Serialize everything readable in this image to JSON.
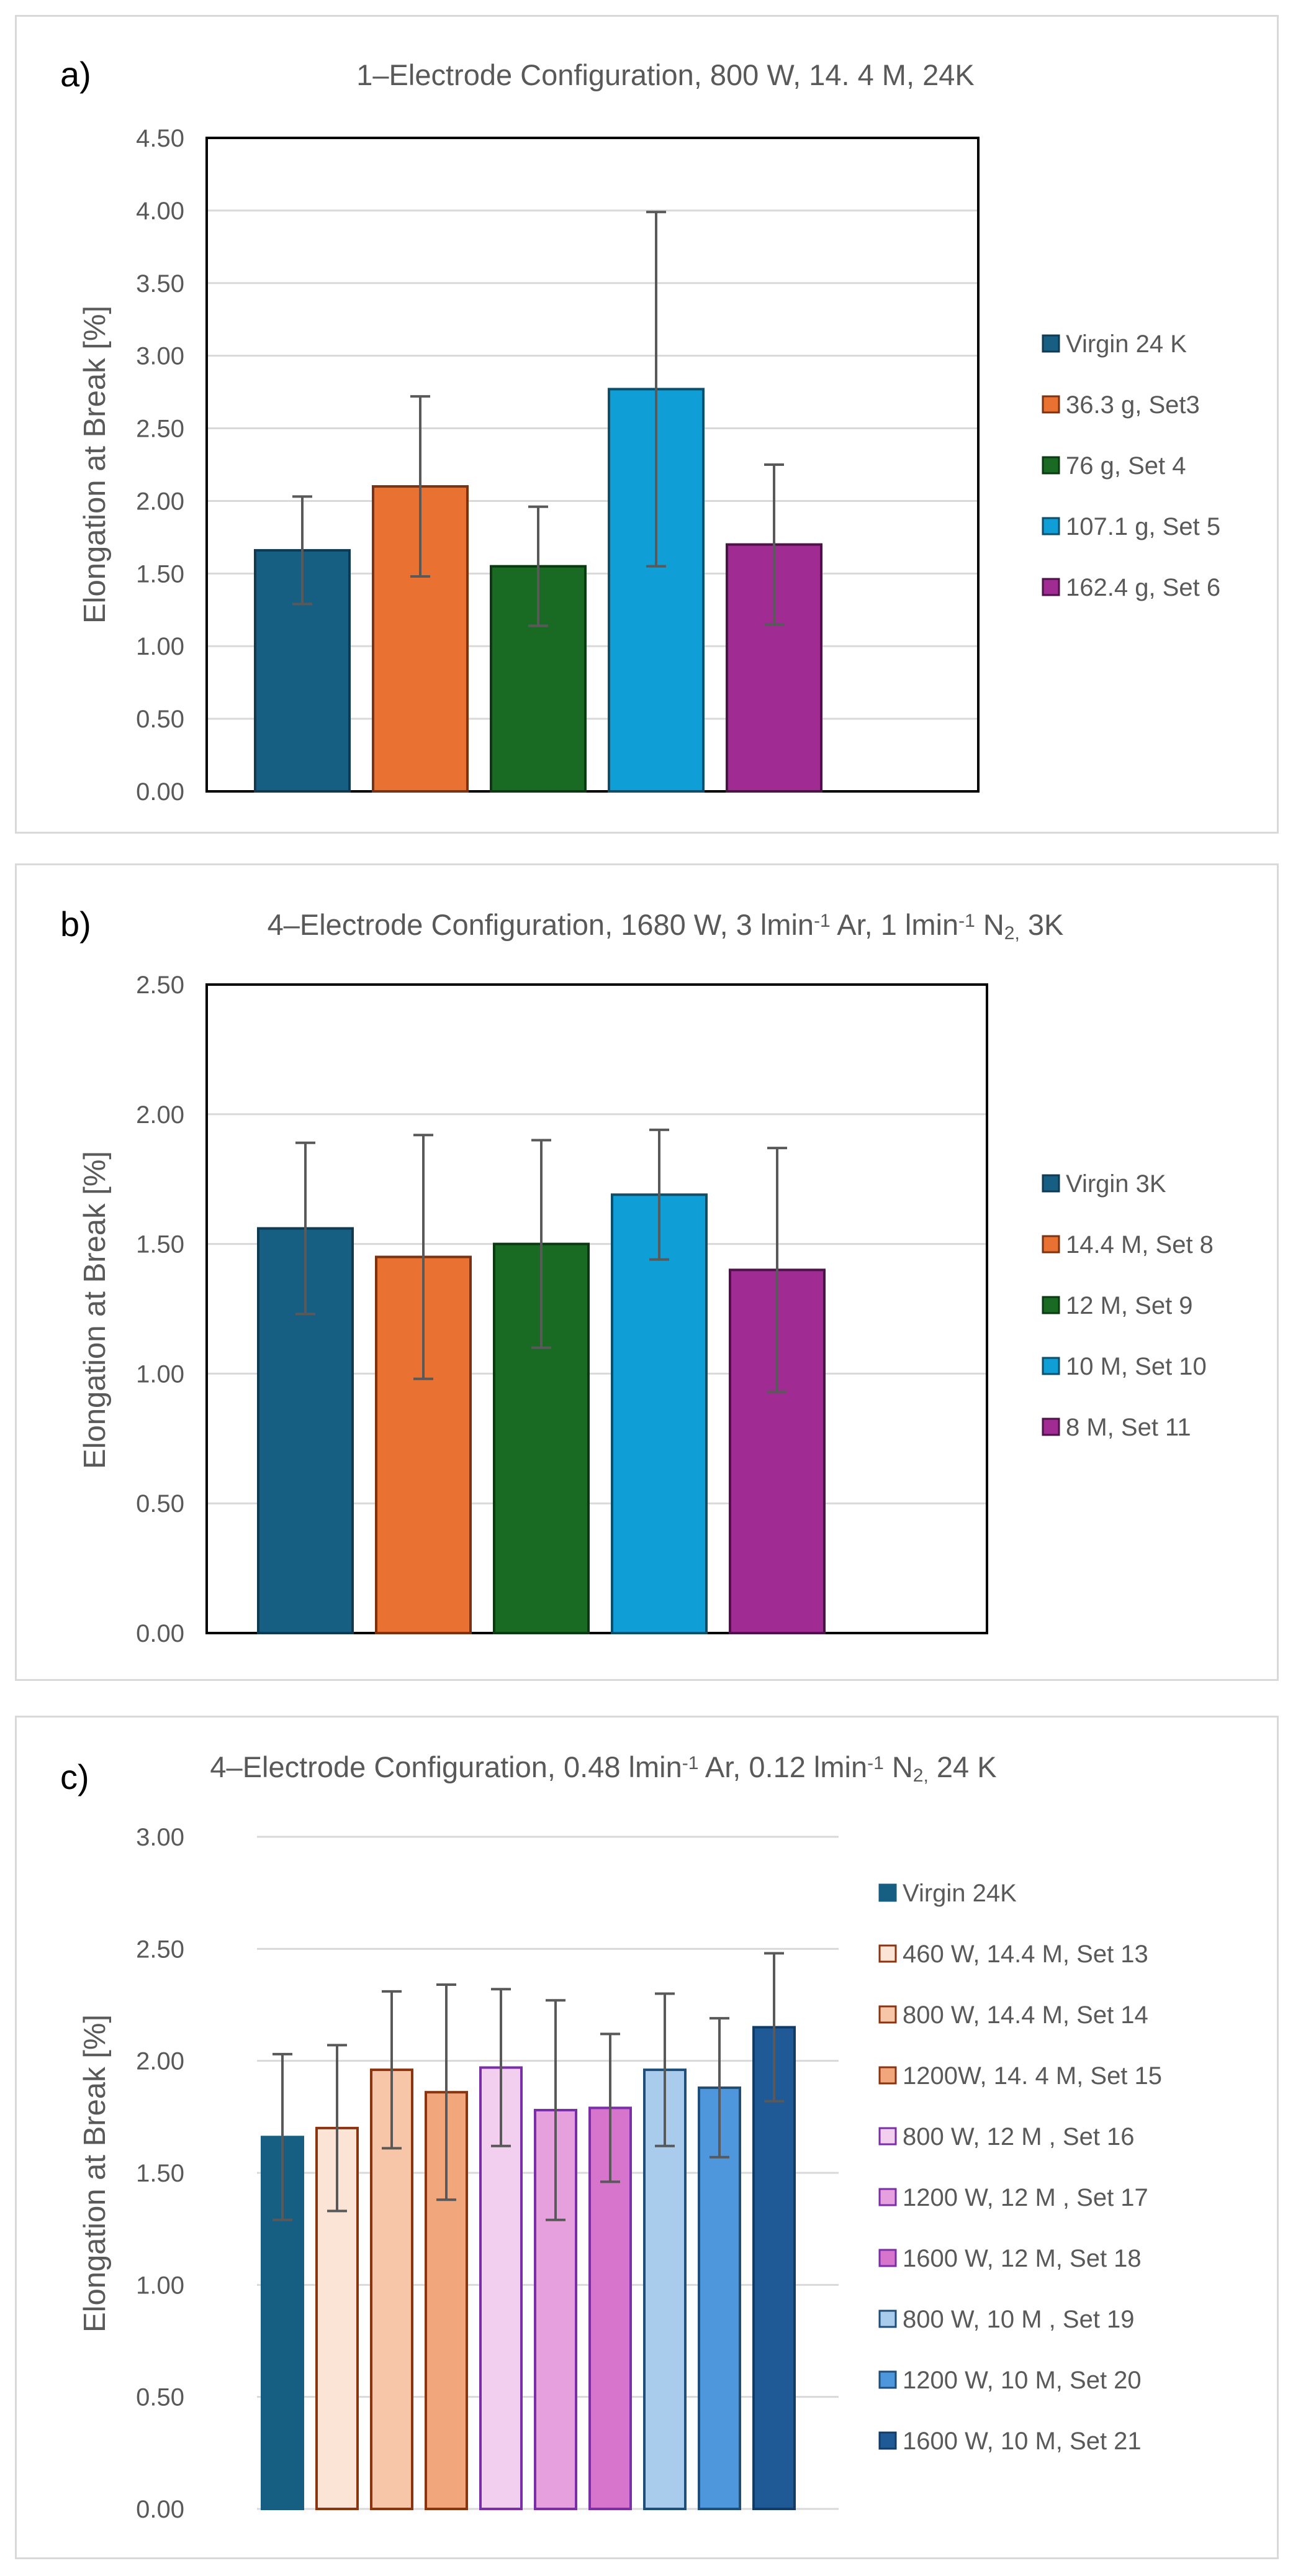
{
  "chart_data": [
    {
      "type": "bar",
      "panel_label": "a)",
      "title": "1–Electrode Configuration, 800 W, 14. 4 M, 24K",
      "ylabel": "Elongation at Break [%]",
      "xlabel": "",
      "ylim": [
        0,
        4.5
      ],
      "ytick_labels": [
        "0.00",
        "0.50",
        "1.00",
        "1.50",
        "2.00",
        "2.50",
        "3.00",
        "3.50",
        "4.00",
        "4.50"
      ],
      "grid": true,
      "plot_frame": true,
      "legend_position": "right",
      "series": [
        {
          "name": "Virgin 24 K",
          "value": 1.66,
          "error": 0.37,
          "color": "#175f82",
          "edge": "#0f3a52"
        },
        {
          "name": "36.3 g, Set3",
          "value": 2.1,
          "error": 0.62,
          "color": "#e97132",
          "edge": "#7a3210"
        },
        {
          "name": "76  g, Set 4",
          "value": 1.55,
          "error": 0.41,
          "color": "#196b24",
          "edge": "#0b3a12"
        },
        {
          "name": "107.1 g, Set 5",
          "value": 2.77,
          "error": 1.22,
          "color": "#0f9ed5",
          "edge": "#0b4f6b"
        },
        {
          "name": "162.4 g, Set 6",
          "value": 1.7,
          "error": 0.55,
          "color": "#a02b93",
          "edge": "#4d1247"
        }
      ]
    },
    {
      "type": "bar",
      "panel_label": "b)",
      "title_parts": [
        "4–Electrode Configuration, 1680 W, 3 lmin",
        "-1",
        " Ar, 1 lmin",
        "-1",
        " N",
        "2,",
        " 3K"
      ],
      "ylabel": "Elongation at Break [%]",
      "xlabel": "",
      "ylim": [
        0,
        2.5
      ],
      "ytick_labels": [
        "0.00",
        "0.50",
        "1.00",
        "1.50",
        "2.00",
        "2.50"
      ],
      "grid": true,
      "plot_frame": true,
      "legend_position": "right",
      "series": [
        {
          "name": "Virgin 3K",
          "value": 1.56,
          "error": 0.33,
          "color": "#175f82",
          "edge": "#0f3a52"
        },
        {
          "name": "14.4 M, Set 8",
          "value": 1.45,
          "error": 0.47,
          "color": "#e97132",
          "edge": "#7a3210"
        },
        {
          "name": "12 M, Set 9",
          "value": 1.5,
          "error": 0.4,
          "color": "#196b24",
          "edge": "#0b3a12"
        },
        {
          "name": "10 M, Set 10",
          "value": 1.69,
          "error": 0.25,
          "color": "#0f9ed5",
          "edge": "#0b4f6b"
        },
        {
          "name": "8 M, Set 11",
          "value": 1.4,
          "error": 0.47,
          "color": "#a02b93",
          "edge": "#4d1247"
        }
      ]
    },
    {
      "type": "bar",
      "panel_label": "c)",
      "title_parts": [
        "4–Electrode Configuration, 0.48 lmin",
        "-1",
        " Ar, 0.12 lmin",
        "-1",
        " N",
        "2,",
        " 24 K"
      ],
      "ylabel": "Elongation at Break [%]",
      "xlabel": "",
      "ylim": [
        0,
        3.0
      ],
      "ytick_labels": [
        "0.00",
        "0.50",
        "1.00",
        "1.50",
        "2.00",
        "2.50",
        "3.00"
      ],
      "grid": true,
      "plot_frame": false,
      "legend_position": "right",
      "series": [
        {
          "name": "Virgin 24K",
          "value": 1.66,
          "error": 0.37,
          "color": "#175f82",
          "edge": "#175f82"
        },
        {
          "name": "460 W, 14.4 M, Set 13",
          "value": 1.7,
          "error": 0.37,
          "color": "#fbe3d6",
          "edge": "#8b3510"
        },
        {
          "name": "800 W, 14.4 M, Set 14",
          "value": 1.96,
          "error": 0.35,
          "color": "#f7c6a8",
          "edge": "#8b3510"
        },
        {
          "name": "1200W, 14. 4 M, Set 15",
          "value": 1.86,
          "error": 0.48,
          "color": "#f1a67c",
          "edge": "#8b3510"
        },
        {
          "name": "800 W, 12 M , Set 16",
          "value": 1.97,
          "error": 0.35,
          "color": "#f2cfee",
          "edge": "#7a2fa8"
        },
        {
          "name": "1200 W, 12 M , Set 17",
          "value": 1.78,
          "error": 0.49,
          "color": "#e6a0dd",
          "edge": "#7a2fa8"
        },
        {
          "name": "1600 W, 12 M, Set 18",
          "value": 1.79,
          "error": 0.33,
          "color": "#d775cc",
          "edge": "#7a2fa8"
        },
        {
          "name": "800 W, 10 M , Set 19",
          "value": 1.96,
          "error": 0.34,
          "color": "#a9cbec",
          "edge": "#1f4e79"
        },
        {
          "name": "1200 W, 10 M, Set 20",
          "value": 1.88,
          "error": 0.31,
          "color": "#4f97dc",
          "edge": "#1f4e79"
        },
        {
          "name": "1600 W, 10 M, Set 21",
          "value": 2.15,
          "error": 0.33,
          "color": "#1f5a96",
          "edge": "#123c66"
        }
      ]
    }
  ]
}
